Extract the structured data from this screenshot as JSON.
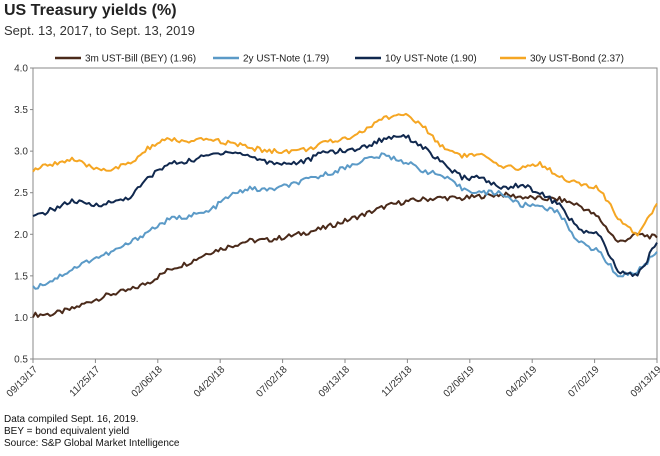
{
  "title": "US Treasury yields (%)",
  "subtitle": "Sept. 13, 2017, to Sept. 13, 2019",
  "notes": [
    "Data compiled Sept. 16, 2019.",
    "BEY = bond equivalent yield",
    "Source: S&P Global Market Intelligence"
  ],
  "chart_data": {
    "type": "line",
    "xlabel": "",
    "ylabel": "",
    "x_ticks": [
      "09/13/17",
      "11/25/17",
      "02/06/18",
      "04/20/18",
      "07/02/18",
      "09/13/18",
      "11/25/18",
      "02/06/19",
      "04/20/19",
      "07/02/19",
      "09/13/19"
    ],
    "ylim": [
      0.5,
      4.0
    ],
    "y_ticks": [
      "0.5",
      "1.0",
      "1.5",
      "2.0",
      "2.5",
      "3.0",
      "3.5",
      "4.0"
    ],
    "grid": false,
    "legend_position": "top",
    "series": [
      {
        "name": "3m UST-Bill (BEY) (1.96)",
        "color": "#4a2a1a",
        "values": [
          1.03,
          1.04,
          1.1,
          1.2,
          1.28,
          1.33,
          1.43,
          1.58,
          1.66,
          1.78,
          1.85,
          1.92,
          1.93,
          1.97,
          2.02,
          2.08,
          2.16,
          2.24,
          2.33,
          2.39,
          2.42,
          2.44,
          2.43,
          2.46,
          2.48,
          2.45,
          2.43,
          2.42,
          2.35,
          2.2,
          1.9,
          2.0,
          1.96
        ]
      },
      {
        "name": "2y UST-Note (1.79)",
        "color": "#5b9ac7",
        "values": [
          1.35,
          1.45,
          1.58,
          1.7,
          1.78,
          1.9,
          2.05,
          2.18,
          2.22,
          2.27,
          2.45,
          2.55,
          2.53,
          2.58,
          2.65,
          2.72,
          2.8,
          2.9,
          2.95,
          2.88,
          2.77,
          2.7,
          2.55,
          2.5,
          2.5,
          2.35,
          2.35,
          2.25,
          1.9,
          1.8,
          1.5,
          1.55,
          1.79
        ]
      },
      {
        "name": "10y UST-Note (1.90)",
        "color": "#10284e",
        "values": [
          2.2,
          2.3,
          2.4,
          2.35,
          2.38,
          2.45,
          2.7,
          2.85,
          2.88,
          2.95,
          3.0,
          2.95,
          2.87,
          2.85,
          2.88,
          3.0,
          3.0,
          3.05,
          3.15,
          3.2,
          3.05,
          2.85,
          2.68,
          2.68,
          2.55,
          2.6,
          2.5,
          2.35,
          2.05,
          2.0,
          1.55,
          1.5,
          1.9
        ]
      },
      {
        "name": "30y UST-Bond (2.37)",
        "color": "#f5a623",
        "values": [
          2.77,
          2.85,
          2.9,
          2.8,
          2.78,
          2.85,
          3.05,
          3.15,
          3.1,
          3.15,
          3.1,
          3.05,
          3.0,
          3.0,
          3.02,
          3.1,
          3.15,
          3.25,
          3.4,
          3.45,
          3.3,
          3.05,
          2.95,
          2.95,
          2.8,
          2.8,
          2.85,
          2.7,
          2.6,
          2.55,
          2.2,
          2.0,
          2.37
        ]
      }
    ]
  }
}
